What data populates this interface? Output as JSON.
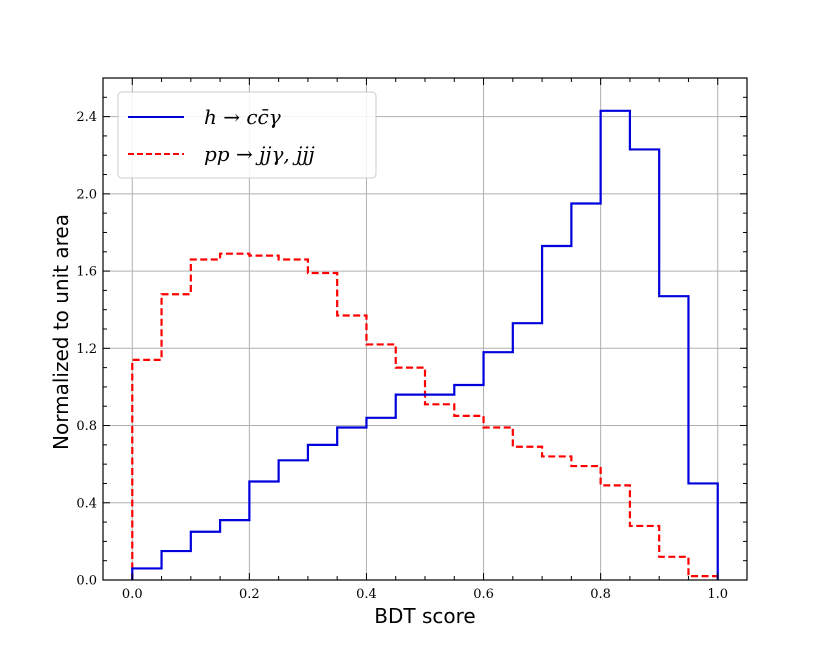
{
  "chart_data": {
    "type": "histogram-step",
    "xlabel": "BDT score",
    "ylabel": "Normalized to unit area",
    "xlim": [
      -0.05,
      1.05
    ],
    "ylim": [
      0.0,
      2.6
    ],
    "xticks": [
      "0.0",
      "0.2",
      "0.4",
      "0.6",
      "0.8",
      "1.0"
    ],
    "yticks": [
      "0.0",
      "0.4",
      "0.8",
      "1.2",
      "1.6",
      "2.0",
      "2.4"
    ],
    "grid": true,
    "legend_position": "top-left",
    "bin_edges": [
      0.0,
      0.05,
      0.1,
      0.15,
      0.2,
      0.25,
      0.3,
      0.35,
      0.4,
      0.45,
      0.5,
      0.55,
      0.6,
      0.65,
      0.7,
      0.75,
      0.8,
      0.85,
      0.9,
      0.95,
      1.0
    ],
    "series": [
      {
        "name": "h → cc̄γ",
        "color": "#0000dd",
        "style": "solid",
        "values": [
          0.06,
          0.15,
          0.25,
          0.31,
          0.51,
          0.62,
          0.7,
          0.79,
          0.84,
          0.96,
          0.96,
          1.01,
          1.18,
          1.33,
          1.73,
          1.95,
          2.43,
          2.23,
          1.47,
          0.5
        ]
      },
      {
        "name": "pp → jjγ, jjj",
        "color": "#ff0000",
        "style": "dashed",
        "values": [
          1.14,
          1.48,
          1.66,
          1.69,
          1.68,
          1.66,
          1.59,
          1.37,
          1.22,
          1.1,
          0.91,
          0.85,
          0.79,
          0.69,
          0.64,
          0.59,
          0.49,
          0.28,
          0.12,
          0.02
        ]
      }
    ]
  }
}
